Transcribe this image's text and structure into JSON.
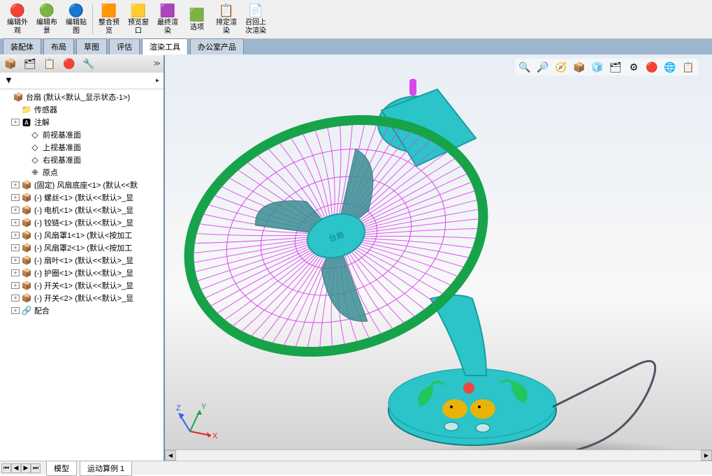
{
  "colors": {
    "fan_body": "#2ac4c9",
    "cage": "#d946ef",
    "ring": "#16a34a",
    "blade": "#3b8f94",
    "knob": "#d946ef",
    "cord": "#4b5563",
    "base_deco_bird": "#eab308",
    "base_deco_leaf": "#22c55e",
    "base_deco_flower": "#ef4444",
    "toolbar_bg": "#f0f0f0",
    "tabbar_bg": "#9db6d0"
  },
  "toolbar": [
    {
      "label": "编辑外\n观",
      "icon": "🔴"
    },
    {
      "label": "编辑布\n景",
      "icon": "🟢"
    },
    {
      "label": "编辑贴\n图",
      "icon": "🔵"
    },
    {
      "sep": true
    },
    {
      "label": "整合预\n览",
      "icon": "🟧"
    },
    {
      "label": "预览窗\n口",
      "icon": "🟨"
    },
    {
      "label": "最终渲\n染",
      "icon": "🟪"
    },
    {
      "label": "选项",
      "icon": "🟩"
    },
    {
      "label": "排定渲\n染",
      "icon": "📋"
    },
    {
      "label": "召回上\n次渲染",
      "icon": "📄"
    }
  ],
  "tabs": [
    {
      "label": "装配体",
      "active": false
    },
    {
      "label": "布局",
      "active": false
    },
    {
      "label": "草图",
      "active": false
    },
    {
      "label": "评估",
      "active": false
    },
    {
      "label": "渲染工具",
      "active": true
    },
    {
      "label": "办公室产品",
      "active": false
    }
  ],
  "sidebar_tabs": [
    "📦",
    "🗂",
    "📋",
    "🔴",
    "🔧"
  ],
  "tree": {
    "root": {
      "icon": "📦",
      "label": "台扇 (默认<默认_显示状态-1>)"
    },
    "children": [
      {
        "lvl": 1,
        "icon": "📁",
        "label": "传感器",
        "exp": ""
      },
      {
        "lvl": 1,
        "icon": "🅰",
        "label": "注解",
        "exp": "+"
      },
      {
        "lvl": 2,
        "icon": "◇",
        "label": "前视基准面",
        "exp": ""
      },
      {
        "lvl": 2,
        "icon": "◇",
        "label": "上视基准面",
        "exp": ""
      },
      {
        "lvl": 2,
        "icon": "◇",
        "label": "右视基准面",
        "exp": ""
      },
      {
        "lvl": 2,
        "icon": "⁜",
        "label": "原点",
        "exp": ""
      },
      {
        "lvl": 1,
        "icon": "📦",
        "label": "(固定) 风扇底座<1> (默认<<默",
        "exp": "+"
      },
      {
        "lvl": 1,
        "icon": "📦",
        "label": "(-) 螺丝<1> (默认<<默认>_显",
        "exp": "+"
      },
      {
        "lvl": 1,
        "icon": "📦",
        "label": "(-) 电机<1> (默认<<默认>_显",
        "exp": "+"
      },
      {
        "lvl": 1,
        "icon": "📦",
        "label": "(-) 铰链<1> (默认<<默认>_显",
        "exp": "+"
      },
      {
        "lvl": 1,
        "icon": "📦",
        "label": "(-) 风扇罩1<1> (默认<按加工",
        "exp": "+"
      },
      {
        "lvl": 1,
        "icon": "📦",
        "label": "(-) 风扇罩2<1> (默认<按加工",
        "exp": "+"
      },
      {
        "lvl": 1,
        "icon": "📦",
        "label": "(-) 扇叶<1> (默认<<默认>_显",
        "exp": "+"
      },
      {
        "lvl": 1,
        "icon": "📦",
        "label": "(-) 护圈<1> (默认<<默认>_显",
        "exp": "+"
      },
      {
        "lvl": 1,
        "icon": "📦",
        "label": "(-) 开关<1> (默认<<默认>_显",
        "exp": "+"
      },
      {
        "lvl": 1,
        "icon": "📦",
        "label": "(-) 开关<2> (默认<<默认>_显",
        "exp": "+"
      },
      {
        "lvl": 1,
        "icon": "🔗",
        "label": "配合",
        "exp": "+"
      }
    ]
  },
  "vp_buttons": [
    "🔍",
    "🔎",
    "🧭",
    "📦",
    "🧊",
    "🗂",
    "⚙",
    "🔴",
    "🌐",
    "📋"
  ],
  "status_tabs": [
    "模型",
    "运动算例 1"
  ],
  "triad_labels": {
    "x": "X",
    "y": "Y",
    "z": "Z"
  },
  "hub_text": "台扇"
}
